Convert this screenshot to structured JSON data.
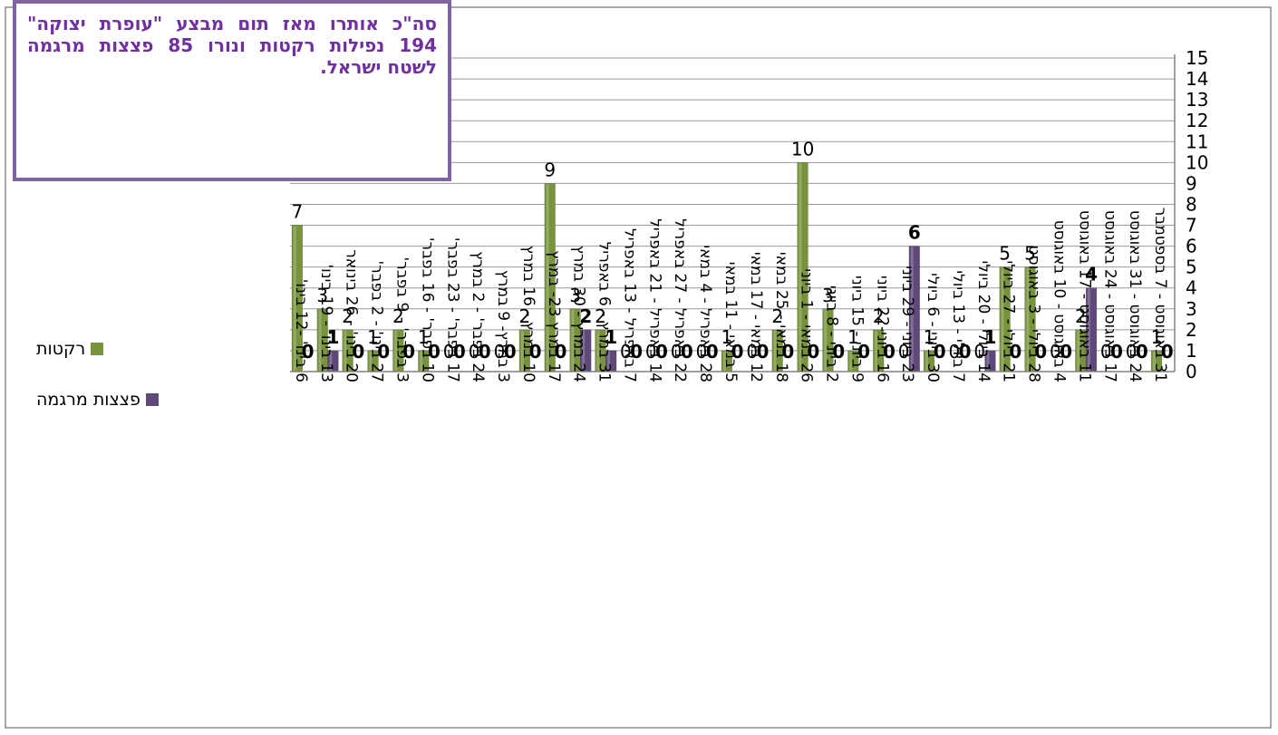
{
  "note": {
    "text": "סה\"כ אותרו מאז תום מבצע \"עופרת יצוקה\" 194 נפילות רקטות ונורו 85 פצצות מרגמה לשטח ישראל."
  },
  "colors": {
    "rockets": "#77933c",
    "mortars": "#5f497a",
    "note_border": "#8064a2",
    "note_text": "#7030a0"
  },
  "chart_data": {
    "type": "bar",
    "title": "",
    "xlabel": "",
    "ylabel": "",
    "ylim": [
      0,
      15
    ],
    "yticks": [
      0,
      1,
      2,
      3,
      4,
      5,
      6,
      7,
      8,
      9,
      10,
      11,
      12,
      13,
      14,
      15
    ],
    "grid": true,
    "legend_position": "left",
    "categories": [
      "6 בינו' -12 בינו'",
      "13 בינו' - 19 בינו'",
      "20 בינו' - 26 בינואר",
      "27 בינו' - 2 בפבר'",
      "3 בפבר' - 9 בפבר'",
      "10 בפבר' - 16 בפבר'",
      "17 בפבר' - 23 בפבר'",
      "24 בפבר' - 2 במרץ",
      "3 במרץ- 9 במרץ",
      "10 במרץ - 16 במרץ",
      "17 במרץ 23- במרץ",
      "24 במרץ - 30 במרץ",
      "31 במרץ - 6 באפריל",
      "7 באפריל - 13 באפריל",
      "14 באפריל - 21 באפריל",
      "22 באפריל - 27 באפריל",
      "28 באפריל - 4 במאי",
      "5 במאי - 11 במאי",
      "12 במאי - 17 במאי",
      "18 במאי - 25 במאי",
      "26 במאי - 1 ביוני",
      "2 ביוני - 8 ביוני",
      "9 ביוני - 15 ביוני",
      "16 ביוני-22 ביוני",
      "23 ביוני - 29 ביוני",
      "30 ביוני - 6 ביולי",
      "7 ביולי - 13 ביולי",
      "14 ביולי - 20 ביולי",
      "21 ביולי - 27 ביולי",
      "28 ביולי - 3 באוגוסט",
      "4 באוגוסט - 10 באוגוסט",
      "11 באוגוסט - 17 באוגוסט",
      "17 באוגוסט - 24 באוגוסט",
      "24 באוגוסט - 31 באוגוסט",
      "31 באוגוסט - 7 בספטמבר"
    ],
    "series": [
      {
        "name": "רקטות",
        "values": [
          7,
          3,
          2,
          1,
          2,
          1,
          0,
          0,
          0,
          2,
          9,
          3,
          2,
          0,
          0,
          0,
          0,
          1,
          0,
          2,
          10,
          3,
          1,
          2,
          0,
          1,
          0,
          0,
          5,
          5,
          0,
          2,
          0,
          0,
          1
        ]
      },
      {
        "name": "פצצות מרגמה",
        "values": [
          0,
          1,
          0,
          0,
          0,
          0,
          0,
          0,
          0,
          0,
          0,
          2,
          1,
          0,
          0,
          0,
          0,
          0,
          0,
          0,
          0,
          0,
          0,
          0,
          6,
          0,
          0,
          1,
          0,
          0,
          0,
          4,
          0,
          0,
          0
        ]
      }
    ]
  }
}
